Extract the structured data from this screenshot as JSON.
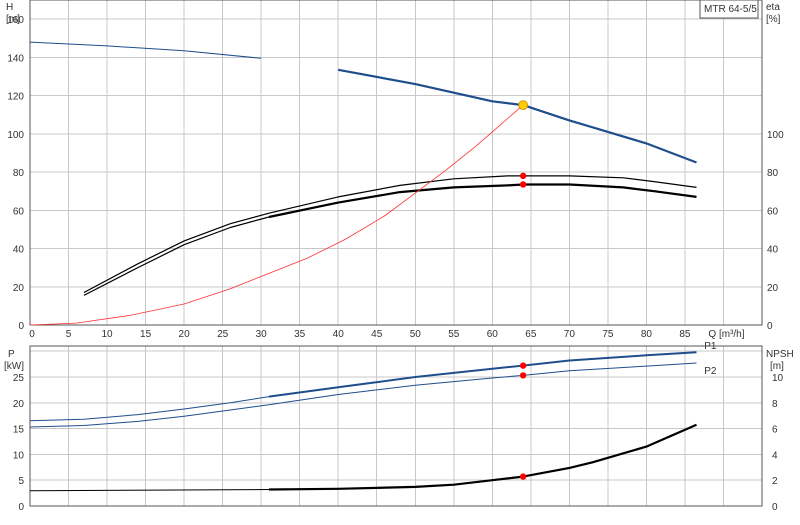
{
  "chart_data": [
    {
      "type": "line",
      "panel": "head-efficiency",
      "title": "",
      "model_label": "MTR 64-5/5",
      "left_axis": {
        "label": "H",
        "unit": "[m]",
        "range": [
          0,
          170
        ],
        "ticks": [
          "0",
          "20",
          "40",
          "60",
          "80",
          "100",
          "120",
          "140",
          "160"
        ]
      },
      "right_axis": {
        "label": "eta",
        "unit": "[%]",
        "range": [
          0,
          170
        ],
        "ticks": [
          "0",
          "20",
          "40",
          "60",
          "80",
          "100"
        ]
      },
      "x_axis": {
        "label": "Q [m³/h]",
        "range": [
          0,
          95
        ],
        "ticks": [
          "0",
          "5",
          "10",
          "15",
          "20",
          "25",
          "30",
          "35",
          "40",
          "45",
          "50",
          "55",
          "60",
          "65",
          "70",
          "75",
          "80",
          "85"
        ]
      },
      "grid": true,
      "duty_point": {
        "x": 64,
        "y": 115,
        "color": "#ffcc00"
      },
      "series": [
        {
          "color": "#1f4e8c",
          "x": [
            0,
            10,
            20,
            30,
            40,
            50,
            60,
            64,
            70,
            80,
            86.5
          ],
          "y": [
            148,
            146,
            143.5,
            139.5,
            133.5,
            126,
            117,
            115,
            107,
            95,
            85
          ]
        },
        {
          "color": "#000000",
          "x": [
            7,
            14,
            20,
            26,
            31,
            40,
            48,
            55,
            62,
            64,
            70,
            77,
            81,
            86.5
          ],
          "y": [
            17,
            32,
            44,
            53,
            58.5,
            67,
            73,
            76.5,
            78,
            78,
            78,
            77,
            75,
            72
          ]
        },
        {
          "color": "#000000",
          "x": [
            7,
            14,
            20,
            26,
            31,
            40,
            48,
            55,
            62,
            64,
            70,
            77,
            81,
            86.5
          ],
          "y": [
            15.5,
            30,
            42,
            51,
            56.5,
            64,
            69.5,
            72,
            73,
            73.5,
            73.5,
            72,
            70,
            67
          ]
        },
        {
          "color": "#ff3030",
          "x": [
            0,
            6,
            13,
            20,
            26,
            31,
            36,
            41,
            46,
            50,
            54,
            58,
            62,
            64
          ],
          "y": [
            0,
            1,
            5,
            11,
            19,
            27,
            35,
            45,
            57,
            69,
            81,
            94,
            108,
            115
          ]
        }
      ],
      "markers": [
        {
          "x": 64,
          "y": 78,
          "color": "#ff0000"
        },
        {
          "x": 64,
          "y": 73.5,
          "color": "#ff0000"
        }
      ]
    },
    {
      "type": "line",
      "panel": "power-npsh",
      "left_axis": {
        "label": "P",
        "unit": "[kW]",
        "range": [
          0,
          31
        ],
        "ticks": [
          "0",
          "5",
          "10",
          "15",
          "20",
          "25"
        ]
      },
      "right_axis": {
        "label": "NPSH",
        "unit": "[m]",
        "range": [
          0,
          12.4
        ],
        "ticks": [
          "0",
          "2",
          "4",
          "6",
          "8",
          "10"
        ]
      },
      "x_axis": {
        "range": [
          0,
          95
        ]
      },
      "grid": true,
      "series": [
        {
          "name": "P1",
          "axis": "left",
          "color": "#1f4e8c",
          "x": [
            0,
            7,
            14,
            20,
            26,
            31,
            40,
            50,
            60,
            64,
            70,
            80,
            86.5
          ],
          "y": [
            16.5,
            16.8,
            17.7,
            18.8,
            20,
            21.2,
            23,
            25,
            26.6,
            27.2,
            28.2,
            29.2,
            29.8
          ]
        },
        {
          "name": "P2",
          "axis": "left",
          "color": "#1f4e8c",
          "x": [
            0,
            7,
            14,
            20,
            26,
            31,
            40,
            50,
            60,
            64,
            70,
            80,
            86.5
          ],
          "y": [
            15.3,
            15.6,
            16.4,
            17.4,
            18.6,
            19.6,
            21.6,
            23.4,
            24.8,
            25.3,
            26.2,
            27.1,
            27.7
          ]
        },
        {
          "name": "NPSH",
          "axis": "right",
          "color": "#000000",
          "x": [
            0,
            31,
            40,
            50,
            55,
            60,
            64,
            70,
            73,
            80,
            86.5
          ],
          "y": [
            1.18,
            1.28,
            1.33,
            1.48,
            1.65,
            2.0,
            2.28,
            2.95,
            3.39,
            4.6,
            6.3
          ]
        }
      ],
      "markers": [
        {
          "x": 64,
          "y": 27.2,
          "axis": "left",
          "color": "#ff0000"
        },
        {
          "x": 64,
          "y": 25.3,
          "axis": "left",
          "color": "#ff0000"
        },
        {
          "x": 64,
          "y": 2.28,
          "axis": "right",
          "color": "#ff0000"
        }
      ]
    }
  ]
}
